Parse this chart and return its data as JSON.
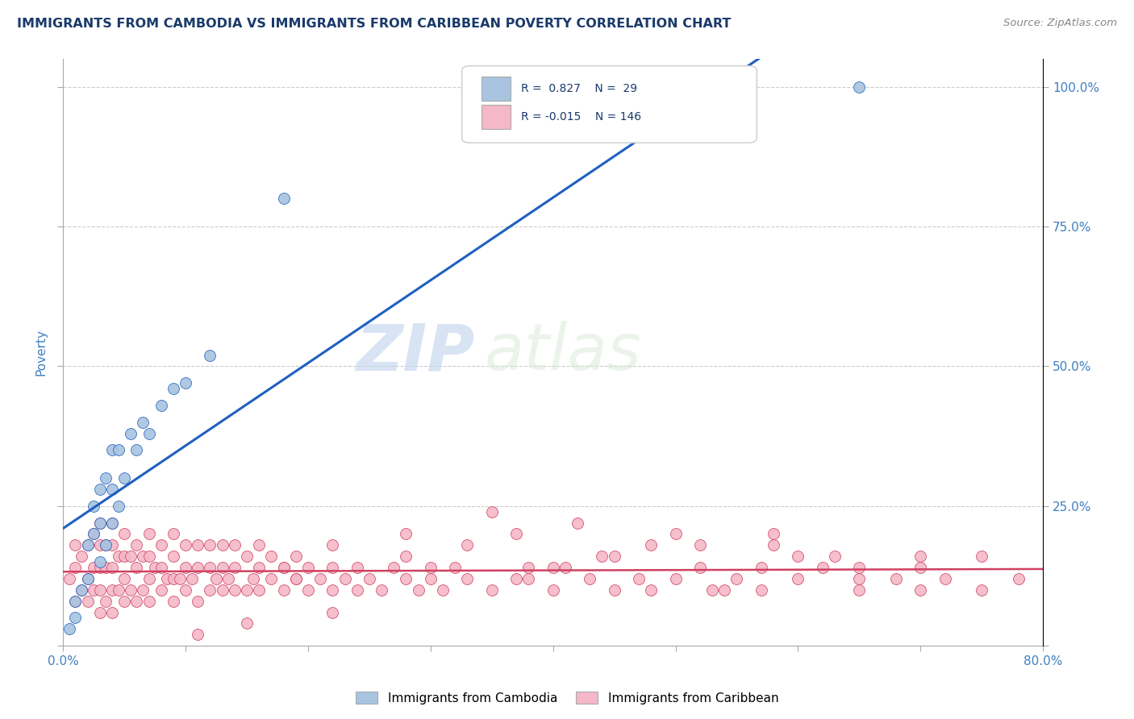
{
  "title": "IMMIGRANTS FROM CAMBODIA VS IMMIGRANTS FROM CARIBBEAN POVERTY CORRELATION CHART",
  "source_text": "Source: ZipAtlas.com",
  "ylabel": "Poverty",
  "xlim": [
    0.0,
    0.8
  ],
  "ylim": [
    0.0,
    1.05
  ],
  "xtick_vals": [
    0.0,
    0.1,
    0.2,
    0.3,
    0.4,
    0.5,
    0.6,
    0.7,
    0.8
  ],
  "ytick_vals": [
    0.0,
    0.25,
    0.5,
    0.75,
    1.0
  ],
  "ytick_labels_right": [
    "",
    "25.0%",
    "50.0%",
    "75.0%",
    "100.0%"
  ],
  "color_cambodia": "#a8c4e0",
  "color_caribbean": "#f4b8c8",
  "line_color_cambodia": "#2060c0",
  "line_color_caribbean": "#d04060",
  "watermark_zip": "ZIP",
  "watermark_atlas": "atlas",
  "title_color": "#1a3a6b",
  "axis_label_color": "#4080c0",
  "tick_label_color": "#4080c0",
  "grid_color": "#cccccc",
  "cambodia_x": [
    0.005,
    0.01,
    0.01,
    0.015,
    0.02,
    0.02,
    0.025,
    0.025,
    0.03,
    0.03,
    0.03,
    0.035,
    0.035,
    0.04,
    0.04,
    0.04,
    0.045,
    0.045,
    0.05,
    0.055,
    0.06,
    0.065,
    0.07,
    0.08,
    0.09,
    0.1,
    0.12,
    0.18,
    0.65
  ],
  "cambodia_y": [
    0.03,
    0.05,
    0.08,
    0.1,
    0.12,
    0.18,
    0.2,
    0.25,
    0.15,
    0.22,
    0.28,
    0.18,
    0.3,
    0.22,
    0.28,
    0.35,
    0.25,
    0.35,
    0.3,
    0.38,
    0.35,
    0.4,
    0.38,
    0.43,
    0.46,
    0.47,
    0.52,
    0.8,
    1.0
  ],
  "caribbean_x": [
    0.005,
    0.01,
    0.01,
    0.01,
    0.015,
    0.015,
    0.02,
    0.02,
    0.02,
    0.025,
    0.025,
    0.025,
    0.03,
    0.03,
    0.03,
    0.03,
    0.03,
    0.035,
    0.035,
    0.035,
    0.04,
    0.04,
    0.04,
    0.04,
    0.04,
    0.045,
    0.045,
    0.05,
    0.05,
    0.05,
    0.05,
    0.055,
    0.055,
    0.06,
    0.06,
    0.06,
    0.065,
    0.065,
    0.07,
    0.07,
    0.07,
    0.07,
    0.075,
    0.08,
    0.08,
    0.08,
    0.085,
    0.09,
    0.09,
    0.09,
    0.09,
    0.095,
    0.1,
    0.1,
    0.1,
    0.105,
    0.11,
    0.11,
    0.11,
    0.12,
    0.12,
    0.12,
    0.125,
    0.13,
    0.13,
    0.13,
    0.135,
    0.14,
    0.14,
    0.14,
    0.15,
    0.15,
    0.155,
    0.16,
    0.16,
    0.16,
    0.17,
    0.17,
    0.18,
    0.18,
    0.19,
    0.19,
    0.2,
    0.2,
    0.21,
    0.22,
    0.22,
    0.23,
    0.24,
    0.25,
    0.26,
    0.27,
    0.28,
    0.29,
    0.3,
    0.31,
    0.32,
    0.33,
    0.35,
    0.37,
    0.38,
    0.4,
    0.41,
    0.43,
    0.45,
    0.47,
    0.48,
    0.5,
    0.52,
    0.54,
    0.55,
    0.57,
    0.6,
    0.62,
    0.65,
    0.68,
    0.7,
    0.72,
    0.75,
    0.78,
    0.28,
    0.35,
    0.22,
    0.18,
    0.42,
    0.5,
    0.58,
    0.63,
    0.22,
    0.15,
    0.11,
    0.3,
    0.38,
    0.45,
    0.52,
    0.58,
    0.65,
    0.7,
    0.19,
    0.24,
    0.28,
    0.33,
    0.37,
    0.4,
    0.44,
    0.48,
    0.53,
    0.57,
    0.6,
    0.65,
    0.7,
    0.75
  ],
  "caribbean_y": [
    0.12,
    0.08,
    0.14,
    0.18,
    0.1,
    0.16,
    0.08,
    0.12,
    0.18,
    0.1,
    0.14,
    0.2,
    0.06,
    0.1,
    0.14,
    0.18,
    0.22,
    0.08,
    0.14,
    0.18,
    0.06,
    0.1,
    0.14,
    0.18,
    0.22,
    0.1,
    0.16,
    0.08,
    0.12,
    0.16,
    0.2,
    0.1,
    0.16,
    0.08,
    0.14,
    0.18,
    0.1,
    0.16,
    0.08,
    0.12,
    0.16,
    0.2,
    0.14,
    0.1,
    0.14,
    0.18,
    0.12,
    0.08,
    0.12,
    0.16,
    0.2,
    0.12,
    0.1,
    0.14,
    0.18,
    0.12,
    0.08,
    0.14,
    0.18,
    0.1,
    0.14,
    0.18,
    0.12,
    0.1,
    0.14,
    0.18,
    0.12,
    0.1,
    0.14,
    0.18,
    0.1,
    0.16,
    0.12,
    0.1,
    0.14,
    0.18,
    0.12,
    0.16,
    0.1,
    0.14,
    0.12,
    0.16,
    0.1,
    0.14,
    0.12,
    0.1,
    0.14,
    0.12,
    0.1,
    0.12,
    0.1,
    0.14,
    0.12,
    0.1,
    0.12,
    0.1,
    0.14,
    0.12,
    0.1,
    0.12,
    0.14,
    0.1,
    0.14,
    0.12,
    0.1,
    0.12,
    0.1,
    0.12,
    0.14,
    0.1,
    0.12,
    0.1,
    0.12,
    0.14,
    0.1,
    0.12,
    0.1,
    0.12,
    0.1,
    0.12,
    0.2,
    0.24,
    0.18,
    0.14,
    0.22,
    0.2,
    0.18,
    0.16,
    0.06,
    0.04,
    0.02,
    0.14,
    0.12,
    0.16,
    0.18,
    0.2,
    0.14,
    0.16,
    0.12,
    0.14,
    0.16,
    0.18,
    0.2,
    0.14,
    0.16,
    0.18,
    0.1,
    0.14,
    0.16,
    0.12,
    0.14,
    0.16
  ]
}
